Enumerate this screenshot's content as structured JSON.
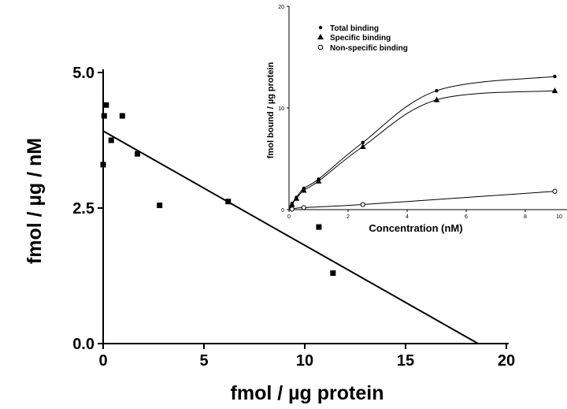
{
  "chart_data": [
    {
      "type": "scatter",
      "title": "",
      "xlabel": "fmol / µg protein",
      "ylabel": "fmol / µg  / nM",
      "xlim": [
        0,
        20
      ],
      "ylim": [
        0,
        5
      ],
      "x_ticks": [
        "0",
        "5",
        "10",
        "15",
        "20"
      ],
      "y_ticks": [
        "0.0",
        "2.5",
        "5.0"
      ],
      "series": [
        {
          "marker": "square",
          "points": [
            {
              "x": 0.0,
              "y": 3.3
            },
            {
              "x": 0.05,
              "y": 4.2
            },
            {
              "x": 0.15,
              "y": 4.4
            },
            {
              "x": 0.4,
              "y": 3.75
            },
            {
              "x": 0.95,
              "y": 4.2
            },
            {
              "x": 1.7,
              "y": 3.5
            },
            {
              "x": 2.8,
              "y": 2.55
            },
            {
              "x": 6.2,
              "y": 2.62
            },
            {
              "x": 10.7,
              "y": 2.15
            },
            {
              "x": 11.4,
              "y": 1.3
            }
          ]
        }
      ],
      "fit_line": {
        "x": [
          0,
          18.6
        ],
        "y": [
          3.92,
          0.0
        ]
      }
    },
    {
      "type": "line",
      "title": "",
      "xlabel": "Concentration  (nM)",
      "ylabel": "fmol bound / µg protein",
      "xlim": [
        0,
        10
      ],
      "ylim": [
        0,
        20
      ],
      "x_ticks": [
        "0",
        "2",
        "4",
        "6",
        "8",
        "10"
      ],
      "y_ticks": [
        "0",
        "10",
        "20"
      ],
      "legend_position": "top-left",
      "series": [
        {
          "name": "Total binding",
          "marker": "dot",
          "x": [
            0.1,
            0.25,
            0.5,
            1.0,
            2.5,
            5.0,
            9.0
          ],
          "y": [
            0.6,
            1.2,
            2.1,
            3.0,
            6.6,
            11.7,
            13.1
          ]
        },
        {
          "name": "Specific binding",
          "marker": "triangle",
          "x": [
            0.1,
            0.25,
            0.5,
            1.0,
            2.5,
            5.0,
            9.0
          ],
          "y": [
            0.5,
            1.1,
            1.9,
            2.8,
            6.2,
            10.8,
            11.7
          ]
        },
        {
          "name": "Non-specific binding",
          "marker": "circle",
          "x": [
            0.1,
            0.5,
            2.5,
            9.0
          ],
          "y": [
            0.05,
            0.2,
            0.5,
            1.8
          ]
        }
      ]
    }
  ]
}
